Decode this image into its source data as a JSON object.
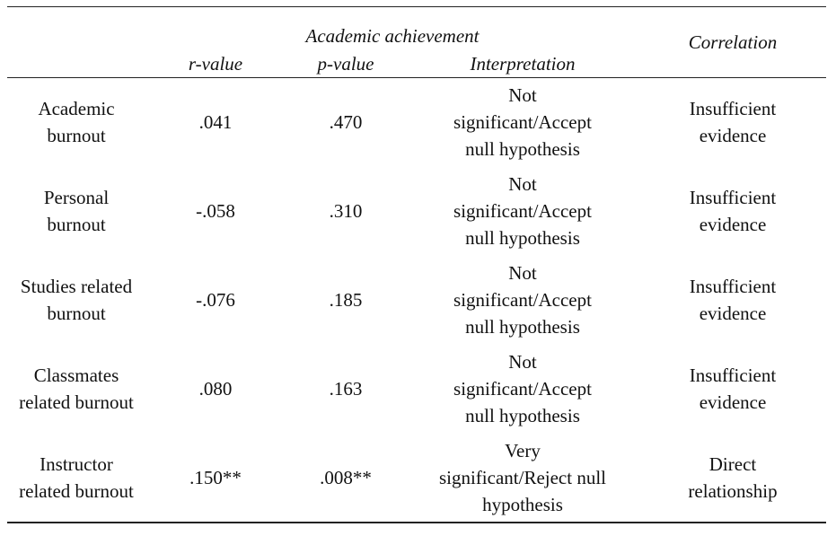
{
  "table": {
    "header": {
      "group": "Academic achievement",
      "correlation": "Correlation",
      "columns": [
        "r-value",
        "p-value",
        "Interpretation"
      ]
    },
    "rows": [
      [
        "Academic burnout",
        ".041",
        ".470",
        "Not significant/Accept null hypothesis",
        "Insufficient evidence"
      ],
      [
        "Personal burnout",
        "-.058",
        ".310",
        "Not significant/Accept null hypothesis",
        "Insufficient evidence"
      ],
      [
        "Studies related burnout",
        "-.076",
        ".185",
        "Not significant/Accept null hypothesis",
        "Insufficient evidence"
      ],
      [
        "Classmates related burnout",
        ".080",
        ".163",
        "Not significant/Accept null hypothesis",
        "Insufficient evidence"
      ],
      [
        "Instructor related burnout",
        ".150**",
        ".008**",
        "Very significant/Reject null hypothesis",
        "Direct relationship"
      ]
    ]
  }
}
